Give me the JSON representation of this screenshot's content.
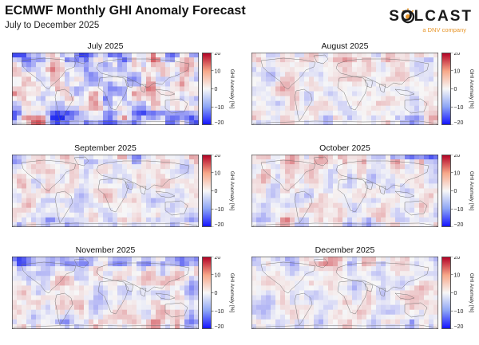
{
  "header": {
    "title": "ECMWF Monthly GHI Anomaly Forecast",
    "subtitle": "July to December 2025"
  },
  "logo": {
    "wordmark": "SOLCAST",
    "tagline": "a DNV company",
    "icon": "sun-icon",
    "accent_color": "#e8962a"
  },
  "chart_data": [
    {
      "type": "heatmap",
      "title": "July 2025",
      "colorbar_label": "GHI Anomaly [%]",
      "ticks": [
        20,
        10,
        0,
        -10,
        -20
      ],
      "vmin": -20,
      "vmax": 20,
      "colormap": "coolwarm-bwr"
    },
    {
      "type": "heatmap",
      "title": "August 2025",
      "colorbar_label": "GHI Anomaly [%]",
      "ticks": [
        20,
        10,
        0,
        -10,
        -20
      ],
      "vmin": -20,
      "vmax": 20,
      "colormap": "coolwarm-bwr"
    },
    {
      "type": "heatmap",
      "title": "September 2025",
      "colorbar_label": "GHI Anomaly [%]",
      "ticks": [
        20,
        10,
        0,
        -10,
        -20
      ],
      "vmin": -20,
      "vmax": 20,
      "colormap": "coolwarm-bwr"
    },
    {
      "type": "heatmap",
      "title": "October 2025",
      "colorbar_label": "GHI Anomaly [%]",
      "ticks": [
        20,
        10,
        0,
        -10,
        -20
      ],
      "vmin": -20,
      "vmax": 20,
      "colormap": "coolwarm-bwr"
    },
    {
      "type": "heatmap",
      "title": "November 2025",
      "colorbar_label": "GHI Anomaly [%]",
      "ticks": [
        20,
        10,
        0,
        -10,
        -20
      ],
      "vmin": -20,
      "vmax": 20,
      "colormap": "coolwarm-bwr"
    },
    {
      "type": "heatmap",
      "title": "December 2025",
      "colorbar_label": "GHI Anomaly [%]",
      "ticks": [
        20,
        10,
        0,
        -10,
        -20
      ],
      "vmin": -20,
      "vmax": 20,
      "colormap": "coolwarm-bwr"
    }
  ]
}
